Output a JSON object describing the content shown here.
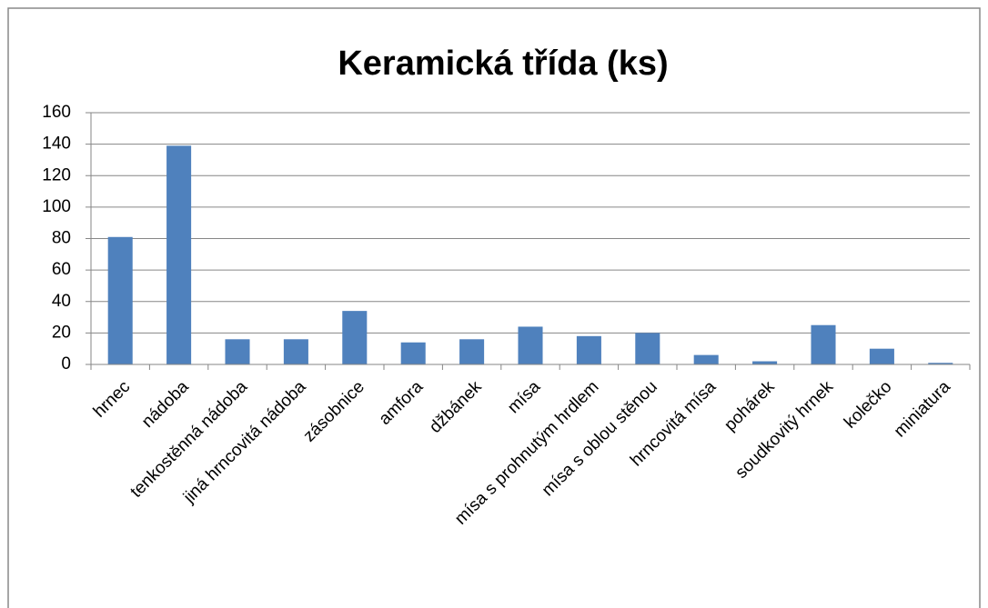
{
  "chart_data": {
    "type": "bar",
    "title": "Keramická třída (ks)",
    "categories": [
      "hrnec",
      "nádoba",
      "tenkostěnná nádoba",
      "jiná hrncovitá nádoba",
      "zásobnice",
      "amfora",
      "džbánek",
      "mísa",
      "mísa s prohnutým hrdlem",
      "mísa s oblou stěnou",
      "hrncovitá mísa",
      "pohárek",
      "soudkovitý hrnek",
      "kolečko",
      "miniatura"
    ],
    "values": [
      81,
      139,
      16,
      16,
      34,
      14,
      16,
      24,
      18,
      20,
      6,
      2,
      25,
      10,
      1
    ],
    "color": "#4f81bd",
    "ylim": [
      0,
      160
    ],
    "yticks": [
      0,
      20,
      40,
      60,
      80,
      100,
      120,
      140,
      160
    ],
    "grid": true
  }
}
